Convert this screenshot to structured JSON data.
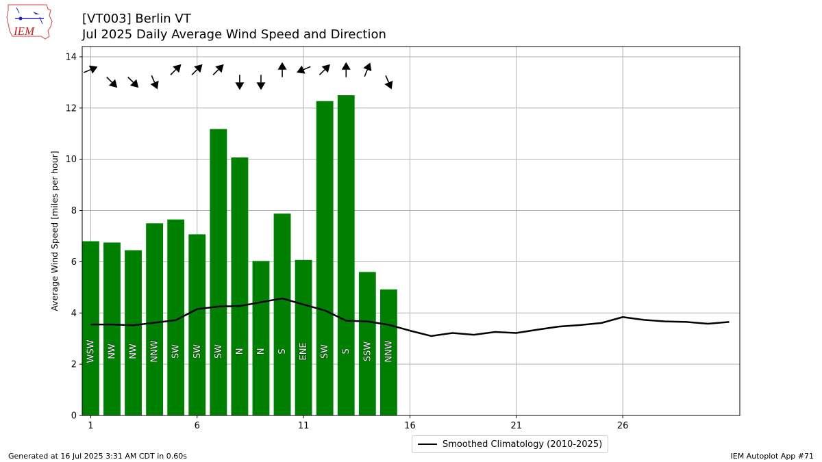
{
  "header": {
    "title_line1": "[VT003] Berlin  VT",
    "title_line2": "Jul 2025 Daily Average Wind Speed and Direction"
  },
  "logo": {
    "text": "IEM",
    "icon": "iem-logo-icon"
  },
  "footer": {
    "left": "Generated at 16 Jul 2025 3:31 AM CDT in 0.60s",
    "right": "IEM Autoplot App #71"
  },
  "colors": {
    "bar": "#008000",
    "line": "#000000",
    "grid": "#b0b0b0",
    "arrow": "#000000"
  },
  "chart_data": {
    "type": "bar",
    "ylabel": "Average Wind Speed [miles per hour]",
    "xlabel": "",
    "xlim": [
      0.6,
      31.5
    ],
    "ylim": [
      0,
      14.4
    ],
    "xticks": [
      1,
      6,
      11,
      16,
      21,
      26
    ],
    "yticks": [
      0,
      2,
      4,
      6,
      8,
      10,
      12,
      14
    ],
    "grid": true,
    "legend_position": "below",
    "days": [
      1,
      2,
      3,
      4,
      5,
      6,
      7,
      8,
      9,
      10,
      11,
      12,
      13,
      14,
      15
    ],
    "values": [
      6.8,
      6.75,
      6.45,
      7.5,
      7.65,
      7.07,
      11.18,
      10.07,
      6.03,
      7.88,
      6.07,
      12.27,
      12.5,
      5.6,
      4.92
    ],
    "directions": [
      "WSW",
      "NW",
      "NW",
      "NNW",
      "SW",
      "SW",
      "SW",
      "N",
      "N",
      "S",
      "ENE",
      "SW",
      "S",
      "SSW",
      "NNW"
    ],
    "arrow_directions": [
      {
        "from": 247,
        "speed": 13.5
      },
      {
        "from": 315,
        "speed": 13.0
      },
      {
        "from": 315,
        "speed": 13.0
      },
      {
        "from": 337,
        "speed": 13.0
      },
      {
        "from": 225,
        "speed": 13.5
      },
      {
        "from": 225,
        "speed": 13.5
      },
      {
        "from": 225,
        "speed": 13.5
      },
      {
        "from": 0,
        "speed": 13.0
      },
      {
        "from": 0,
        "speed": 13.0
      },
      {
        "from": 180,
        "speed": 13.5
      },
      {
        "from": 67,
        "speed": 13.5
      },
      {
        "from": 225,
        "speed": 13.5
      },
      {
        "from": 180,
        "speed": 13.5
      },
      {
        "from": 202,
        "speed": 13.5
      },
      {
        "from": 337,
        "speed": 13.0
      }
    ],
    "series": [
      {
        "name": "Smoothed Climatology (2010-2025)",
        "x": [
          1,
          2,
          3,
          4,
          5,
          6,
          7,
          8,
          9,
          10,
          11,
          12,
          13,
          14,
          15,
          16,
          17,
          18,
          19,
          20,
          21,
          22,
          23,
          24,
          25,
          26,
          27,
          28,
          29,
          30,
          31
        ],
        "values": [
          3.55,
          3.55,
          3.52,
          3.62,
          3.72,
          4.15,
          4.25,
          4.27,
          4.42,
          4.57,
          4.33,
          4.1,
          3.7,
          3.67,
          3.54,
          3.31,
          3.1,
          3.22,
          3.15,
          3.26,
          3.22,
          3.35,
          3.47,
          3.53,
          3.61,
          3.84,
          3.73,
          3.67,
          3.65,
          3.58,
          3.65
        ]
      }
    ]
  }
}
